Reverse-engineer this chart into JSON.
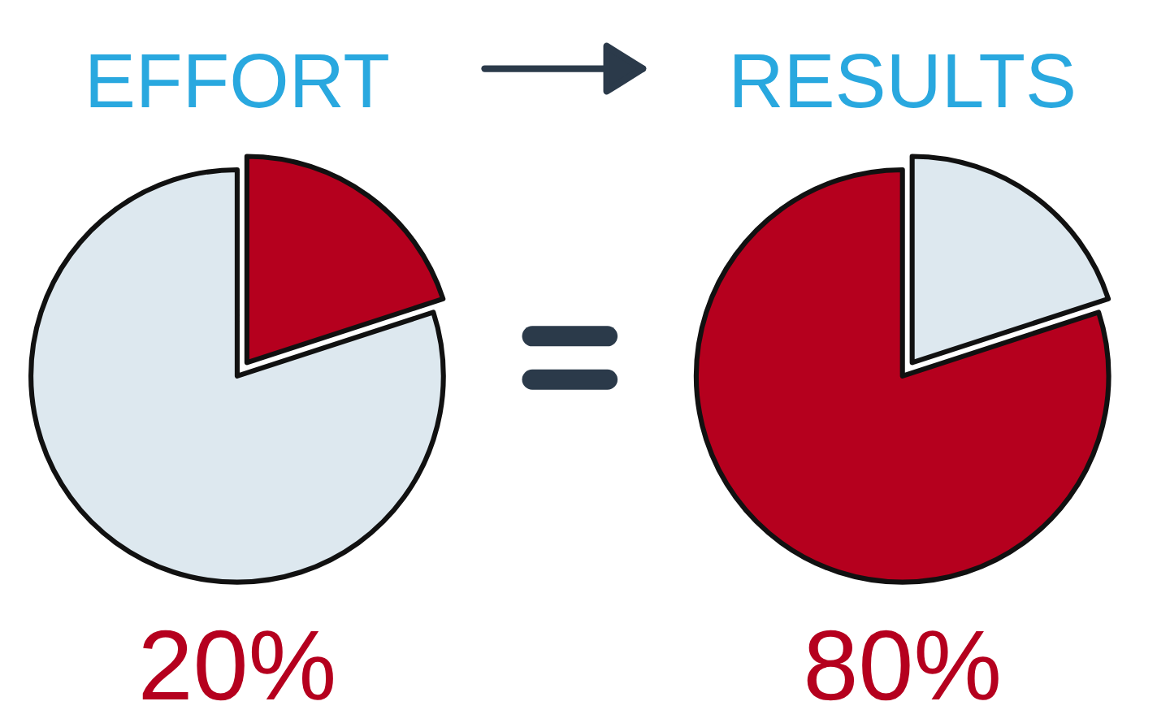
{
  "chart_data": [
    {
      "type": "pie",
      "title": "EFFORT",
      "categories": [
        null,
        null
      ],
      "values": [
        20,
        80
      ],
      "colors": [
        "#b5001e",
        "#dde8ef"
      ],
      "annotations": [
        "20%"
      ]
    },
    {
      "type": "pie",
      "title": "RESULTS",
      "categories": [
        null,
        null
      ],
      "values": [
        20,
        80
      ],
      "colors": [
        "#dde8ef",
        "#b5001e"
      ],
      "annotations": [
        "80%"
      ]
    }
  ]
}
